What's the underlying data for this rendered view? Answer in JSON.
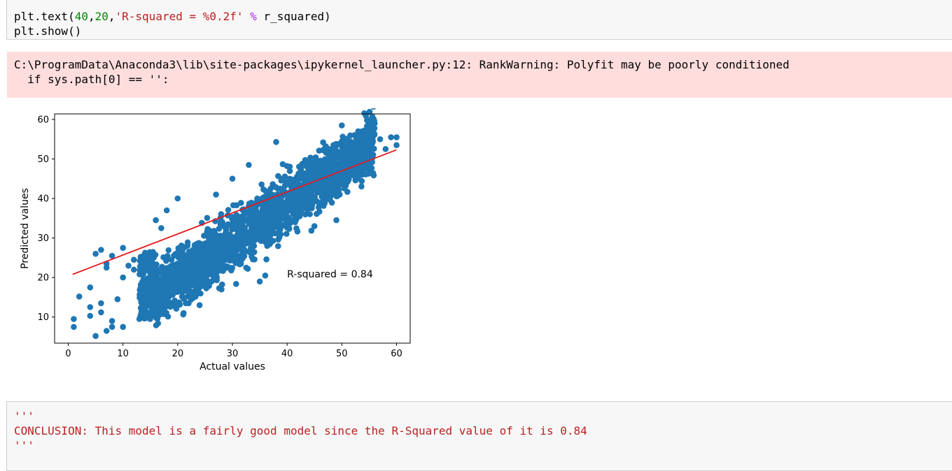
{
  "cell1": {
    "line1_prefix": "plt.text(",
    "line1_num1": "40",
    "line1_comma1": ",",
    "line1_num2": "20",
    "line1_comma2": ",",
    "line1_str": "'R-squared = %0.2f'",
    "line1_space": " ",
    "line1_op": "%",
    "line1_suffix": " r_squared)",
    "line2": "plt.show()"
  },
  "stderr": {
    "line1": "C:\\ProgramData\\Anaconda3\\lib\\site-packages\\ipykernel_launcher.py:12: RankWarning: Polyfit may be poorly conditioned",
    "line2": "  if sys.path[0] == '':"
  },
  "chart_data": {
    "type": "scatter",
    "xlabel": "Actual values",
    "ylabel": "Predicted values",
    "xlim": [
      -2.5,
      62.5
    ],
    "ylim": [
      3.4,
      61.4
    ],
    "xticks": [
      0,
      10,
      20,
      30,
      40,
      50,
      60
    ],
    "yticks": [
      10,
      20,
      30,
      40,
      50,
      60
    ],
    "point_color": "#1f77b4",
    "line_color": "#e41a1c",
    "fit_line": {
      "x": [
        0.8,
        60
      ],
      "y": [
        20.8,
        52.3
      ]
    },
    "annotation": {
      "x": 40,
      "y": 20,
      "text": "R-squared = 0.84"
    },
    "outlier_points": [
      [
        1,
        9.5
      ],
      [
        1,
        7.5
      ],
      [
        2,
        15.2
      ],
      [
        4,
        17.5
      ],
      [
        4,
        12.5
      ],
      [
        4,
        10.3
      ],
      [
        5,
        26
      ],
      [
        5,
        5.2
      ],
      [
        6,
        27
      ],
      [
        6,
        13.5
      ],
      [
        6,
        11.2
      ],
      [
        7,
        22.5
      ],
      [
        7,
        23.5
      ],
      [
        7,
        6.5
      ],
      [
        8,
        25.5
      ],
      [
        8,
        7.5
      ],
      [
        8,
        9
      ],
      [
        9,
        14.5
      ],
      [
        10,
        27.5
      ],
      [
        10,
        20
      ],
      [
        10,
        7.5
      ],
      [
        12,
        22
      ],
      [
        12,
        24.5
      ],
      [
        13,
        9.5
      ],
      [
        14,
        25
      ],
      [
        35,
        19
      ],
      [
        36,
        20.5
      ],
      [
        38,
        54.3
      ],
      [
        33,
        48.5
      ],
      [
        50,
        58.5
      ],
      [
        56,
        59
      ],
      [
        55,
        48
      ],
      [
        45,
        33
      ],
      [
        49,
        34.5
      ],
      [
        42,
        44
      ],
      [
        60,
        53.5
      ],
      [
        58,
        52.5
      ],
      [
        28,
        17
      ],
      [
        22,
        13.5
      ],
      [
        16,
        34.5
      ],
      [
        17,
        32.5
      ],
      [
        18,
        37
      ],
      [
        11,
        23
      ],
      [
        53,
        57
      ],
      [
        52,
        50.5
      ],
      [
        47,
        53
      ],
      [
        46,
        47
      ],
      [
        57,
        55
      ],
      [
        59,
        55.5
      ],
      [
        60,
        55.5
      ],
      [
        20,
        40
      ],
      [
        24,
        13
      ],
      [
        30,
        45
      ],
      [
        27,
        41
      ]
    ]
  },
  "cell2": {
    "line1": "'''",
    "line2": "CONCLUSION: This model is a fairly good model since the R-Squared value of it is 0.84",
    "line3": "'''"
  }
}
